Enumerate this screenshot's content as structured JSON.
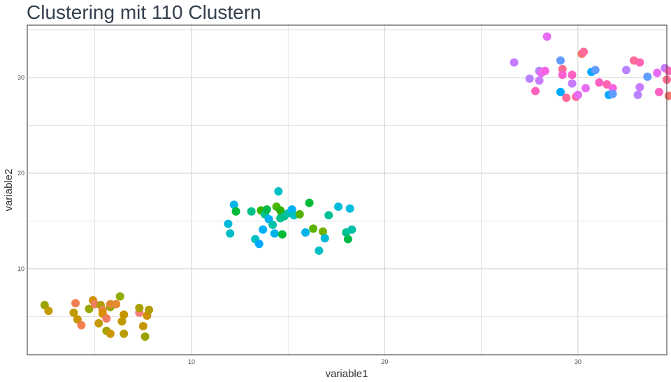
{
  "chart_data": {
    "type": "scatter",
    "title": "Clustering mit 110 Clustern",
    "xlabel": "variable1",
    "ylabel": "variable2",
    "xlim": [
      1.5,
      34.6
    ],
    "ylim": [
      1.0,
      35.5
    ],
    "x_ticks": [
      10,
      20,
      30
    ],
    "x_tick_labels": [
      "10",
      "20",
      "30"
    ],
    "y_ticks": [
      10,
      20,
      30
    ],
    "y_tick_labels": [
      "10",
      "20",
      "30"
    ],
    "grid": true,
    "legend": "none",
    "points": [
      {
        "x": 2.4,
        "y": 6.2,
        "color": "#9aa300"
      },
      {
        "x": 2.6,
        "y": 5.6,
        "color": "#c39a00"
      },
      {
        "x": 4.0,
        "y": 6.4,
        "color": "#f07e50"
      },
      {
        "x": 3.9,
        "y": 5.4,
        "color": "#c09a00"
      },
      {
        "x": 4.1,
        "y": 4.7,
        "color": "#c89400"
      },
      {
        "x": 4.3,
        "y": 4.1,
        "color": "#f28052"
      },
      {
        "x": 4.7,
        "y": 5.8,
        "color": "#99a800"
      },
      {
        "x": 4.9,
        "y": 6.7,
        "color": "#d49000"
      },
      {
        "x": 5.0,
        "y": 6.3,
        "color": "#f08060"
      },
      {
        "x": 5.2,
        "y": 4.3,
        "color": "#c39a00"
      },
      {
        "x": 5.3,
        "y": 6.2,
        "color": "#b09e00"
      },
      {
        "x": 5.4,
        "y": 5.7,
        "color": "#e5883e"
      },
      {
        "x": 5.4,
        "y": 5.3,
        "color": "#d89000"
      },
      {
        "x": 5.6,
        "y": 4.8,
        "color": "#f07c60"
      },
      {
        "x": 5.6,
        "y": 3.5,
        "color": "#a7a200"
      },
      {
        "x": 5.8,
        "y": 6.0,
        "color": "#93aa00"
      },
      {
        "x": 5.8,
        "y": 3.2,
        "color": "#c89800"
      },
      {
        "x": 5.8,
        "y": 6.3,
        "color": "#e08a30"
      },
      {
        "x": 6.1,
        "y": 6.3,
        "color": "#e48a30"
      },
      {
        "x": 6.3,
        "y": 7.1,
        "color": "#93aa00"
      },
      {
        "x": 6.4,
        "y": 4.5,
        "color": "#c09a00"
      },
      {
        "x": 6.5,
        "y": 5.2,
        "color": "#c89400"
      },
      {
        "x": 6.5,
        "y": 3.2,
        "color": "#bb9c00"
      },
      {
        "x": 7.3,
        "y": 5.4,
        "color": "#f38076"
      },
      {
        "x": 7.3,
        "y": 5.9,
        "color": "#a8a000"
      },
      {
        "x": 7.5,
        "y": 4.0,
        "color": "#c59600"
      },
      {
        "x": 7.7,
        "y": 5.1,
        "color": "#d09000"
      },
      {
        "x": 7.8,
        "y": 5.7,
        "color": "#b19d00"
      },
      {
        "x": 7.6,
        "y": 2.9,
        "color": "#9aa300"
      },
      {
        "x": 11.9,
        "y": 14.7,
        "color": "#00b8d8"
      },
      {
        "x": 12.0,
        "y": 13.7,
        "color": "#00bfc4"
      },
      {
        "x": 12.2,
        "y": 16.7,
        "color": "#00b4e8"
      },
      {
        "x": 12.3,
        "y": 16.0,
        "color": "#00ba38"
      },
      {
        "x": 13.1,
        "y": 16.0,
        "color": "#00c08b"
      },
      {
        "x": 13.3,
        "y": 13.1,
        "color": "#00bfc4"
      },
      {
        "x": 13.5,
        "y": 12.6,
        "color": "#00a9ff"
      },
      {
        "x": 13.6,
        "y": 16.1,
        "color": "#33b600"
      },
      {
        "x": 13.7,
        "y": 14.1,
        "color": "#00b0f6"
      },
      {
        "x": 13.8,
        "y": 15.7,
        "color": "#00c094"
      },
      {
        "x": 13.9,
        "y": 16.2,
        "color": "#00b94c"
      },
      {
        "x": 14.0,
        "y": 15.2,
        "color": "#00b0f6"
      },
      {
        "x": 14.2,
        "y": 14.6,
        "color": "#00c0a8"
      },
      {
        "x": 14.3,
        "y": 13.7,
        "color": "#00b4e8"
      },
      {
        "x": 14.4,
        "y": 16.5,
        "color": "#4bb600"
      },
      {
        "x": 14.5,
        "y": 18.1,
        "color": "#00bfc4"
      },
      {
        "x": 14.6,
        "y": 15.3,
        "color": "#00c08b"
      },
      {
        "x": 14.6,
        "y": 16.1,
        "color": "#2cb500"
      },
      {
        "x": 14.7,
        "y": 13.6,
        "color": "#00ba38"
      },
      {
        "x": 14.8,
        "y": 15.5,
        "color": "#00c08b"
      },
      {
        "x": 15.0,
        "y": 15.8,
        "color": "#00c0a8"
      },
      {
        "x": 15.2,
        "y": 16.2,
        "color": "#00b0f6"
      },
      {
        "x": 15.3,
        "y": 15.6,
        "color": "#00bfc4"
      },
      {
        "x": 15.6,
        "y": 15.7,
        "color": "#53b400"
      },
      {
        "x": 15.9,
        "y": 13.8,
        "color": "#00b4e8"
      },
      {
        "x": 16.1,
        "y": 16.9,
        "color": "#00ba38"
      },
      {
        "x": 16.3,
        "y": 14.2,
        "color": "#5bb300"
      },
      {
        "x": 16.6,
        "y": 11.9,
        "color": "#00bfc4"
      },
      {
        "x": 16.8,
        "y": 13.9,
        "color": "#73b000"
      },
      {
        "x": 16.9,
        "y": 13.2,
        "color": "#00b8d8"
      },
      {
        "x": 17.1,
        "y": 15.6,
        "color": "#00c094"
      },
      {
        "x": 17.6,
        "y": 16.5,
        "color": "#00bcd8"
      },
      {
        "x": 18.0,
        "y": 13.8,
        "color": "#00c094"
      },
      {
        "x": 18.1,
        "y": 13.1,
        "color": "#00b94c"
      },
      {
        "x": 18.2,
        "y": 16.3,
        "color": "#00bce0"
      },
      {
        "x": 18.3,
        "y": 14.1,
        "color": "#00c0a8"
      },
      {
        "x": 26.7,
        "y": 31.6,
        "color": "#c77cff"
      },
      {
        "x": 27.5,
        "y": 29.9,
        "color": "#b983ff"
      },
      {
        "x": 27.8,
        "y": 28.6,
        "color": "#ff62bc"
      },
      {
        "x": 28.0,
        "y": 30.7,
        "color": "#b983ff"
      },
      {
        "x": 28.0,
        "y": 29.7,
        "color": "#c77cff"
      },
      {
        "x": 28.1,
        "y": 30.5,
        "color": "#e76bf3"
      },
      {
        "x": 28.3,
        "y": 30.7,
        "color": "#f763e0"
      },
      {
        "x": 28.4,
        "y": 34.3,
        "color": "#e76bf3"
      },
      {
        "x": 29.1,
        "y": 31.8,
        "color": "#619cff"
      },
      {
        "x": 29.1,
        "y": 28.5,
        "color": "#00a9ff"
      },
      {
        "x": 29.2,
        "y": 30.9,
        "color": "#ff6c91"
      },
      {
        "x": 29.2,
        "y": 30.3,
        "color": "#fd61d1"
      },
      {
        "x": 29.4,
        "y": 27.9,
        "color": "#ff6a98"
      },
      {
        "x": 29.7,
        "y": 29.4,
        "color": "#c77cff"
      },
      {
        "x": 29.7,
        "y": 30.3,
        "color": "#ff61c3"
      },
      {
        "x": 29.9,
        "y": 28.0,
        "color": "#ff6a98"
      },
      {
        "x": 30.0,
        "y": 28.2,
        "color": "#e76bf3"
      },
      {
        "x": 30.2,
        "y": 32.5,
        "color": "#f8766d"
      },
      {
        "x": 30.3,
        "y": 32.7,
        "color": "#ff6a98"
      },
      {
        "x": 30.4,
        "y": 28.9,
        "color": "#e76bf3"
      },
      {
        "x": 30.7,
        "y": 30.6,
        "color": "#00a9ff"
      },
      {
        "x": 30.9,
        "y": 30.8,
        "color": "#619cff"
      },
      {
        "x": 31.1,
        "y": 29.5,
        "color": "#ff61c3"
      },
      {
        "x": 31.5,
        "y": 29.3,
        "color": "#ff64b0"
      },
      {
        "x": 31.6,
        "y": 28.2,
        "color": "#00a9ff"
      },
      {
        "x": 31.8,
        "y": 28.9,
        "color": "#f763e0"
      },
      {
        "x": 31.8,
        "y": 28.3,
        "color": "#619cff"
      },
      {
        "x": 32.5,
        "y": 30.8,
        "color": "#b983ff"
      },
      {
        "x": 32.9,
        "y": 31.8,
        "color": "#ff6a98"
      },
      {
        "x": 33.2,
        "y": 31.6,
        "color": "#ff64b0"
      },
      {
        "x": 33.1,
        "y": 28.2,
        "color": "#b983ff"
      },
      {
        "x": 33.2,
        "y": 29.0,
        "color": "#c77cff"
      },
      {
        "x": 33.6,
        "y": 30.1,
        "color": "#619cff"
      },
      {
        "x": 34.1,
        "y": 30.5,
        "color": "#e76bf3"
      },
      {
        "x": 34.2,
        "y": 28.5,
        "color": "#ff61c3"
      },
      {
        "x": 34.5,
        "y": 31.0,
        "color": "#c77cff"
      },
      {
        "x": 34.6,
        "y": 29.8,
        "color": "#ff6c91"
      },
      {
        "x": 34.7,
        "y": 30.7,
        "color": "#ff64b0"
      },
      {
        "x": 34.7,
        "y": 28.1,
        "color": "#f8766d"
      }
    ]
  }
}
